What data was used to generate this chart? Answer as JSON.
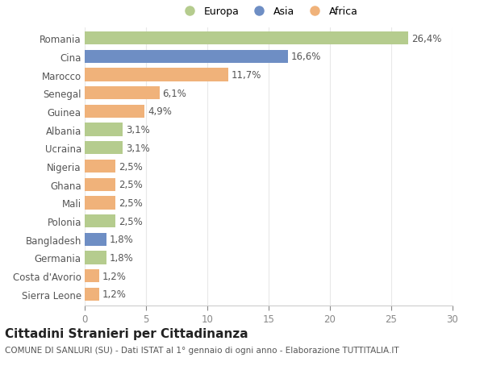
{
  "countries": [
    "Romania",
    "Cina",
    "Marocco",
    "Senegal",
    "Guinea",
    "Albania",
    "Ucraina",
    "Nigeria",
    "Ghana",
    "Mali",
    "Polonia",
    "Bangladesh",
    "Germania",
    "Costa d'Avorio",
    "Sierra Leone"
  ],
  "values": [
    26.4,
    16.6,
    11.7,
    6.1,
    4.9,
    3.1,
    3.1,
    2.5,
    2.5,
    2.5,
    2.5,
    1.8,
    1.8,
    1.2,
    1.2
  ],
  "labels": [
    "26,4%",
    "16,6%",
    "11,7%",
    "6,1%",
    "4,9%",
    "3,1%",
    "3,1%",
    "2,5%",
    "2,5%",
    "2,5%",
    "2,5%",
    "1,8%",
    "1,8%",
    "1,2%",
    "1,2%"
  ],
  "continents": [
    "Europa",
    "Asia",
    "Africa",
    "Africa",
    "Africa",
    "Europa",
    "Europa",
    "Africa",
    "Africa",
    "Africa",
    "Europa",
    "Asia",
    "Europa",
    "Africa",
    "Africa"
  ],
  "colors": {
    "Europa": "#b5cc8e",
    "Asia": "#6e8ec4",
    "Africa": "#f0b27a"
  },
  "title": "Cittadini Stranieri per Cittadinanza",
  "subtitle": "COMUNE DI SANLURI (SU) - Dati ISTAT al 1° gennaio di ogni anno - Elaborazione TUTTITALIA.IT",
  "xlim": [
    0,
    30
  ],
  "xticks": [
    0,
    5,
    10,
    15,
    20,
    25,
    30
  ],
  "background_color": "#ffffff",
  "grid_color": "#e8e8e8",
  "bar_height": 0.72,
  "label_fontsize": 8.5,
  "ytick_fontsize": 8.5,
  "xtick_fontsize": 8.5,
  "title_fontsize": 11,
  "subtitle_fontsize": 7.5,
  "legend_fontsize": 9
}
